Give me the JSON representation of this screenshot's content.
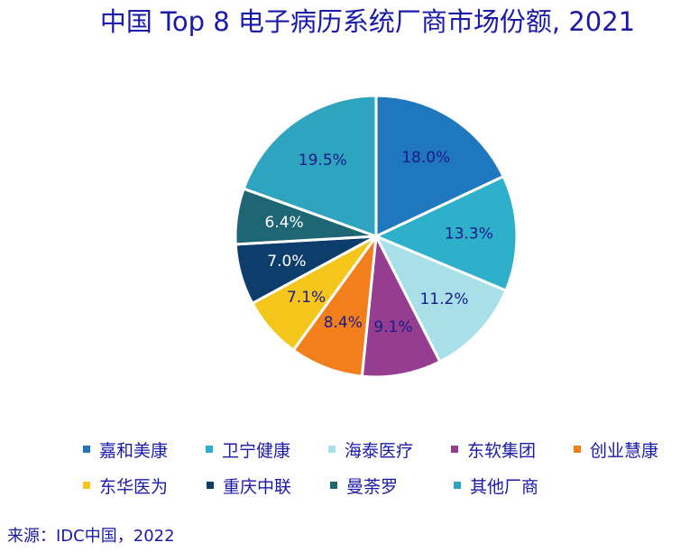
{
  "chart_data": {
    "type": "pie",
    "title": "中国 Top 8 电子病历系统厂商市场份额, 2021",
    "source": "来源：IDC中国，2022",
    "slices": [
      {
        "name": "嘉和美康",
        "value": 18.0,
        "label": "18.0%",
        "color": "#1f77be",
        "label_color": "#1a1a8a"
      },
      {
        "name": "卫宁健康",
        "value": 13.3,
        "label": "13.3%",
        "color": "#2eb0ca",
        "label_color": "#1a1a8a"
      },
      {
        "name": "海泰医疗",
        "value": 11.2,
        "label": "11.2%",
        "color": "#a9dfe9",
        "label_color": "#1a1a8a"
      },
      {
        "name": "东软集团",
        "value": 9.1,
        "label": "9.1%",
        "color": "#953d91",
        "label_color": "#1a1a8a"
      },
      {
        "name": "创业慧康",
        "value": 8.4,
        "label": "8.4%",
        "color": "#f27f1c",
        "label_color": "#1a1a8a"
      },
      {
        "name": "东华医为",
        "value": 7.1,
        "label": "7.1%",
        "color": "#f4c61b",
        "label_color": "#1a1a8a"
      },
      {
        "name": "重庆中联",
        "value": 7.0,
        "label": "7.0%",
        "color": "#0d3d6b",
        "label_color": "#ffffff"
      },
      {
        "name": "曼荼罗",
        "value": 6.4,
        "label": "6.4%",
        "color": "#1e6673",
        "label_color": "#ffffff"
      },
      {
        "name": "其他厂商",
        "value": 19.5,
        "label": "19.5%",
        "color": "#2fa4be",
        "label_color": "#1a1a8a"
      }
    ],
    "legend_position": "bottom"
  }
}
